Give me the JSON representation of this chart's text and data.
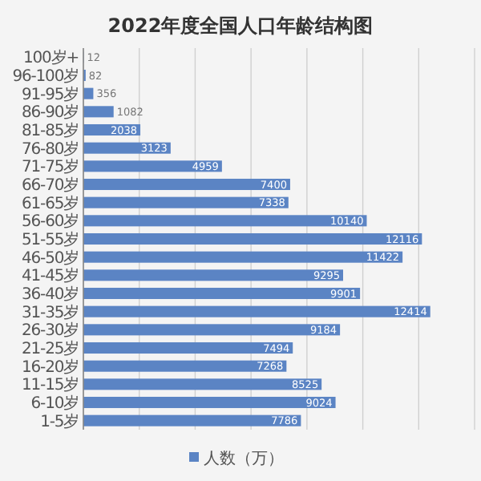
{
  "chart_data": {
    "type": "bar",
    "orientation": "horizontal",
    "title": "2022年度全国人口年龄结构图",
    "categories": [
      "100岁+",
      "96-100岁",
      "91-95岁",
      "86-90岁",
      "81-85岁",
      "76-80岁",
      "71-75岁",
      "66-70岁",
      "61-65岁",
      "56-60岁",
      "51-55岁",
      "46-50岁",
      "41-45岁",
      "36-40岁",
      "31-35岁",
      "26-30岁",
      "21-25岁",
      "16-20岁",
      "11-15岁",
      "6-10岁",
      "1-5岁"
    ],
    "series": [
      {
        "name": "人数（万）",
        "color": "#5b84c4",
        "values": [
          12,
          82,
          356,
          1082,
          2038,
          3123,
          4959,
          7400,
          7338,
          10140,
          12116,
          11422,
          9295,
          9901,
          12414,
          9184,
          7494,
          7268,
          8525,
          9024,
          7786
        ]
      }
    ],
    "xlim": [
      0,
      14000
    ],
    "xticks": [
      {
        "value": 0,
        "label": null
      },
      {
        "value": 2000,
        "label": null
      },
      {
        "value": 4000,
        "label": null
      },
      {
        "value": 6000,
        "label": null
      },
      {
        "value": 8000,
        "label": null
      },
      {
        "value": 10000,
        "label": null
      },
      {
        "value": 12000,
        "label": null
      },
      {
        "value": 14000,
        "label": null
      }
    ],
    "grid": "x",
    "tick_labels": "y",
    "data_labels": true,
    "legend": "bottom"
  }
}
